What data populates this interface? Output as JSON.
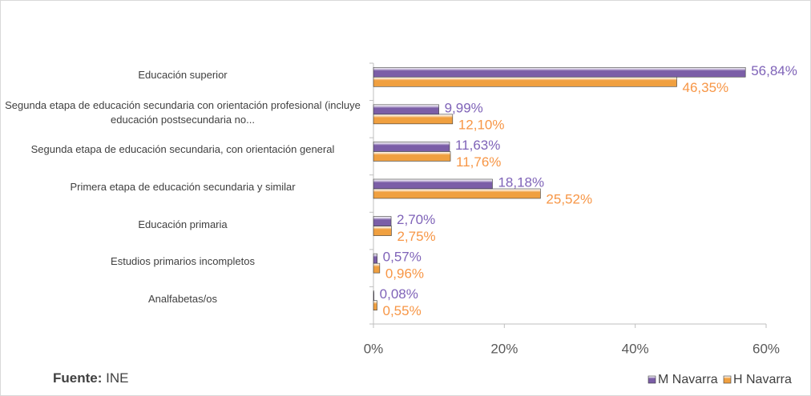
{
  "chart_data": {
    "type": "hbar",
    "categories": [
      "Educación superior",
      "Segunda etapa de educación secundaria con orientación profesional (incluye educación postsecundaria no...",
      "Segunda etapa de educación secundaria, con orientación general",
      "Primera etapa de educación secundaria y similar",
      "Educación primaria",
      "Estudios primarios incompletos",
      "Analfabetas/os"
    ],
    "series": [
      {
        "name": "M Navarra",
        "color": "#7b5ea7",
        "label_color": "#7f63b8",
        "values": [
          56.84,
          9.99,
          11.63,
          18.18,
          2.7,
          0.57,
          0.08
        ],
        "value_labels": [
          "56,84%",
          "9,99%",
          "11,63%",
          "18,18%",
          "2,70%",
          "0,57%",
          "0,08%"
        ]
      },
      {
        "name": "H Navarra",
        "color": "#f0a040",
        "label_color": "#f79646",
        "values": [
          46.35,
          12.1,
          11.76,
          25.52,
          2.75,
          0.96,
          0.55
        ],
        "value_labels": [
          "46,35%",
          "12,10%",
          "11,76%",
          "25,52%",
          "2,75%",
          "0,96%",
          "0,55%"
        ]
      }
    ],
    "xlim": [
      0,
      60
    ],
    "xticks": [
      {
        "value": 0,
        "label": "0%"
      },
      {
        "value": 20,
        "label": "20%"
      },
      {
        "value": 40,
        "label": "40%"
      },
      {
        "value": 60,
        "label": "60%"
      }
    ],
    "grid": false,
    "legend": "bottom-right",
    "source_label": "Fuente:",
    "source": "INE"
  }
}
